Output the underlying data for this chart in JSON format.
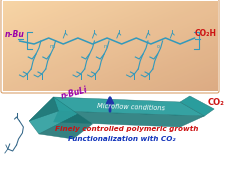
{
  "bg_color": "#ffffff",
  "top_box_color_tl": "#f8d4a0",
  "top_box_color_br": "#f0a060",
  "teal_color": "#2a9d9d",
  "teal_dark": "#1a7070",
  "teal_mid": "#227a7a",
  "arrow_blue": "#2233aa",
  "text_microflow": "Microflow conditions",
  "text_growth": "Finely controlled polymeric growth",
  "text_func": "Functionalization with CO₂",
  "text_co2": "CO₂",
  "text_nbuli": "n-BuLi",
  "text_nbu": "n-Bu",
  "text_co2h": "CO₂H",
  "growth_color": "#cc1111",
  "func_color": "#1133bb",
  "co2_color": "#cc1111",
  "nbuli_color": "#9900aa",
  "nbu_color": "#9900aa",
  "co2h_color": "#cc1111",
  "struct_color": "#3399bb",
  "myrcene_color": "#336688"
}
